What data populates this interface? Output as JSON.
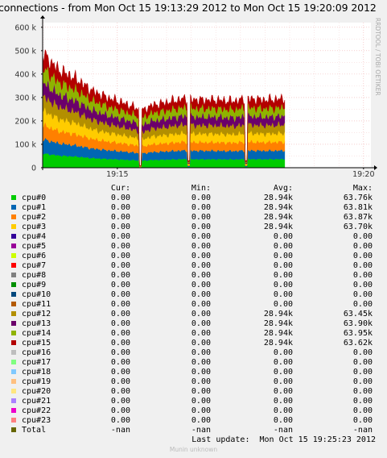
{
  "title": "connections - from Mon Oct 15 19:13:29 2012 to Mon Oct 15 19:20:09 2012",
  "side_label": "RRDTOOL / TOBI OETIKER",
  "legend_header": {
    "cur": "Cur:",
    "min": "Min:",
    "avg": "Avg:",
    "max": "Max:"
  },
  "legend": [
    {
      "name": "cpu#0",
      "color": "#00cc00",
      "cur": "0.00",
      "min": "0.00",
      "avg": "28.94k",
      "max": "63.76k"
    },
    {
      "name": "cpu#1",
      "color": "#0066b3",
      "cur": "0.00",
      "min": "0.00",
      "avg": "28.94k",
      "max": "63.81k"
    },
    {
      "name": "cpu#2",
      "color": "#ff8000",
      "cur": "0.00",
      "min": "0.00",
      "avg": "28.94k",
      "max": "63.87k"
    },
    {
      "name": "cpu#3",
      "color": "#ffcc00",
      "cur": "0.00",
      "min": "0.00",
      "avg": "28.94k",
      "max": "63.70k"
    },
    {
      "name": "cpu#4",
      "color": "#330099",
      "cur": "0.00",
      "min": "0.00",
      "avg": "0.00",
      "max": "0.00"
    },
    {
      "name": "cpu#5",
      "color": "#990099",
      "cur": "0.00",
      "min": "0.00",
      "avg": "0.00",
      "max": "0.00"
    },
    {
      "name": "cpu#6",
      "color": "#ccff00",
      "cur": "0.00",
      "min": "0.00",
      "avg": "0.00",
      "max": "0.00"
    },
    {
      "name": "cpu#7",
      "color": "#ff0000",
      "cur": "0.00",
      "min": "0.00",
      "avg": "0.00",
      "max": "0.00"
    },
    {
      "name": "cpu#8",
      "color": "#808080",
      "cur": "0.00",
      "min": "0.00",
      "avg": "0.00",
      "max": "0.00"
    },
    {
      "name": "cpu#9",
      "color": "#008f00",
      "cur": "0.00",
      "min": "0.00",
      "avg": "0.00",
      "max": "0.00"
    },
    {
      "name": "cpu#10",
      "color": "#00487d",
      "cur": "0.00",
      "min": "0.00",
      "avg": "0.00",
      "max": "0.00"
    },
    {
      "name": "cpu#11",
      "color": "#b35a00",
      "cur": "0.00",
      "min": "0.00",
      "avg": "0.00",
      "max": "0.00"
    },
    {
      "name": "cpu#12",
      "color": "#b38f00",
      "cur": "0.00",
      "min": "0.00",
      "avg": "28.94k",
      "max": "63.45k"
    },
    {
      "name": "cpu#13",
      "color": "#6b006b",
      "cur": "0.00",
      "min": "0.00",
      "avg": "28.94k",
      "max": "63.90k"
    },
    {
      "name": "cpu#14",
      "color": "#8fb300",
      "cur": "0.00",
      "min": "0.00",
      "avg": "28.94k",
      "max": "63.95k"
    },
    {
      "name": "cpu#15",
      "color": "#b30000",
      "cur": "0.00",
      "min": "0.00",
      "avg": "28.94k",
      "max": "63.62k"
    },
    {
      "name": "cpu#16",
      "color": "#bebebe",
      "cur": "0.00",
      "min": "0.00",
      "avg": "0.00",
      "max": "0.00"
    },
    {
      "name": "cpu#17",
      "color": "#80ff80",
      "cur": "0.00",
      "min": "0.00",
      "avg": "0.00",
      "max": "0.00"
    },
    {
      "name": "cpu#18",
      "color": "#80c9ff",
      "cur": "0.00",
      "min": "0.00",
      "avg": "0.00",
      "max": "0.00"
    },
    {
      "name": "cpu#19",
      "color": "#ffc080",
      "cur": "0.00",
      "min": "0.00",
      "avg": "0.00",
      "max": "0.00"
    },
    {
      "name": "cpu#20",
      "color": "#ffe680",
      "cur": "0.00",
      "min": "0.00",
      "avg": "0.00",
      "max": "0.00"
    },
    {
      "name": "cpu#21",
      "color": "#aa80ff",
      "cur": "0.00",
      "min": "0.00",
      "avg": "0.00",
      "max": "0.00"
    },
    {
      "name": "cpu#22",
      "color": "#ee00cc",
      "cur": "0.00",
      "min": "0.00",
      "avg": "0.00",
      "max": "0.00"
    },
    {
      "name": "cpu#23",
      "color": "#ff8080",
      "cur": "0.00",
      "min": "0.00",
      "avg": "0.00",
      "max": "0.00"
    },
    {
      "name": "Total",
      "color": "#666600",
      "cur": "-nan",
      "min": "-nan",
      "avg": "-nan",
      "max": "-nan"
    }
  ],
  "last_update": "Last update:  Mon Oct 15 19:25:23 2012",
  "footer": "Munin unknown",
  "chart_data": {
    "type": "area",
    "stacked": true,
    "grid": true,
    "x_ticks": [
      "19:15",
      "19:20"
    ],
    "y_ticks": [
      "0",
      "100 k",
      "200 k",
      "300 k",
      "400 k",
      "500 k",
      "600 k"
    ],
    "ylim": [
      0,
      620000
    ],
    "x_start": "19:13:29",
    "x_end": "19:20:09",
    "data_end": "19:18:24",
    "x_tick_times": [
      "19:15:00",
      "19:20:00"
    ],
    "total_profile": {
      "times": [
        "19:13:29",
        "19:13:48",
        "19:14:10",
        "19:14:29",
        "19:14:48",
        "19:15:05",
        "19:15:20",
        "19:15:29",
        "19:15:32",
        "19:15:40",
        "19:16:00",
        "19:16:20",
        "19:16:40",
        "19:17:00",
        "19:17:20",
        "19:17:40",
        "19:18:00",
        "19:18:24"
      ],
      "values": [
        490000,
        420000,
        380000,
        330000,
        300000,
        280000,
        260000,
        245000,
        245000,
        265000,
        280000,
        295000,
        290000,
        290000,
        285000,
        295000,
        290000,
        295000
      ]
    },
    "dips": [
      {
        "time": "19:15:28",
        "value": 10000
      },
      {
        "time": "19:16:27",
        "value": 30000
      },
      {
        "time": "19:17:37",
        "value": 30000
      }
    ],
    "series": [
      {
        "name": "cpu#0",
        "color": "#00cc00",
        "share": 0.125
      },
      {
        "name": "cpu#1",
        "color": "#0066b3",
        "share": 0.125
      },
      {
        "name": "cpu#2",
        "color": "#ff8000",
        "share": 0.125
      },
      {
        "name": "cpu#3",
        "color": "#ffcc00",
        "share": 0.125
      },
      {
        "name": "cpu#12",
        "color": "#b38f00",
        "share": 0.125
      },
      {
        "name": "cpu#13",
        "color": "#6b006b",
        "share": 0.125
      },
      {
        "name": "cpu#14",
        "color": "#8fb300",
        "share": 0.125
      },
      {
        "name": "cpu#15",
        "color": "#b30000",
        "share": 0.125
      }
    ]
  }
}
